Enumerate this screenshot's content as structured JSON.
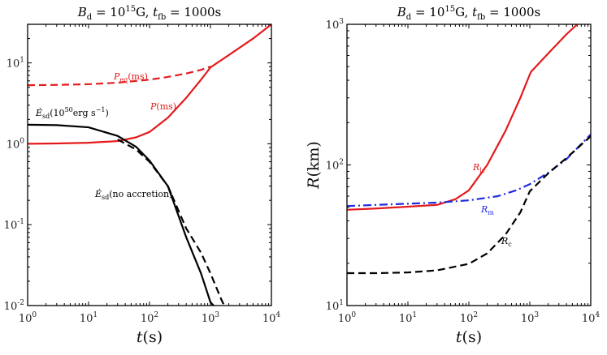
{
  "chart_data": [
    {
      "type": "line",
      "title": "B_d = 10^15 G, t_fb = 1000s",
      "title_parts": {
        "B": "B",
        "B_sub": "d",
        "eq": " = 10",
        "exp": "15",
        "unit": "G, ",
        "t": "t",
        "t_sub": "fb",
        "rest": " = 1000s"
      },
      "xlabel": "t(s)",
      "ylabel": "",
      "xscale": "log",
      "yscale": "log",
      "xlim": [
        1,
        10000
      ],
      "ylim": [
        0.01,
        30
      ],
      "grid": false,
      "x_ticks": [
        {
          "b": "10",
          "e": "0"
        },
        {
          "b": "10",
          "e": "1"
        },
        {
          "b": "10",
          "e": "2"
        },
        {
          "b": "10",
          "e": "3"
        },
        {
          "b": "10",
          "e": "4"
        }
      ],
      "y_ticks": [
        {
          "b": "10",
          "e": "-2"
        },
        {
          "b": "10",
          "e": "-1"
        },
        {
          "b": "10",
          "e": "0"
        },
        {
          "b": "10",
          "e": "1"
        }
      ],
      "series": [
        {
          "name": "P_eq(ms)",
          "label_text": "P",
          "label_sub": "eq",
          "label_rest": "(ms)",
          "color": "#e41a1c",
          "dash": "dashed",
          "x": [
            1,
            3,
            10,
            30,
            100,
            200,
            400,
            700,
            1000
          ],
          "y": [
            5.3,
            5.35,
            5.45,
            5.7,
            6.2,
            6.7,
            7.4,
            8.2,
            9.0
          ]
        },
        {
          "name": "P(ms)",
          "label_text": "P",
          "label_sub": "",
          "label_rest": "(ms)",
          "color": "#e41a1c",
          "dash": "solid",
          "x": [
            1,
            3,
            10,
            30,
            60,
            100,
            200,
            400,
            700,
            1000,
            2000,
            5000,
            10000
          ],
          "y": [
            1.0,
            1.01,
            1.03,
            1.08,
            1.2,
            1.4,
            2.1,
            3.7,
            6.2,
            8.8,
            12.5,
            20.0,
            30.0
          ]
        },
        {
          "name": "Ė_sd(10^50 erg s^-1)",
          "label_text": "Ė",
          "label_sub": "sd",
          "label_rest": "(10",
          "label_exp": "50",
          "label_rest2": "erg s",
          "label_exp2": "−1",
          "label_end": ")",
          "color": "#000000",
          "dash": "solid",
          "x": [
            1,
            3,
            10,
            30,
            60,
            100,
            200,
            400,
            700,
            1000,
            1200
          ],
          "y": [
            1.72,
            1.7,
            1.6,
            1.25,
            0.92,
            0.62,
            0.3,
            0.07,
            0.025,
            0.011,
            0.0095
          ]
        },
        {
          "name": "Ė_sd(no accretion)",
          "label_text": "Ė",
          "label_sub": "sd",
          "label_rest": "(no accretion)",
          "color": "#000000",
          "dash": "dashed",
          "x": [
            30,
            60,
            100,
            200,
            400,
            700,
            1000,
            1500,
            1700
          ],
          "y": [
            1.13,
            0.85,
            0.6,
            0.3,
            0.09,
            0.045,
            0.025,
            0.012,
            0.0098
          ]
        }
      ]
    },
    {
      "type": "line",
      "title": "B_d = 10^15 G, t_fb = 1000s",
      "title_parts": {
        "B": "B",
        "B_sub": "d",
        "eq": " = 10",
        "exp": "15",
        "unit": "G, ",
        "t": "t",
        "t_sub": "fb",
        "rest": " = 1000s"
      },
      "xlabel": "t(s)",
      "ylabel": "R(km)",
      "xscale": "log",
      "yscale": "log",
      "xlim": [
        1,
        10000
      ],
      "ylim": [
        10,
        1000
      ],
      "grid": false,
      "x_ticks": [
        {
          "b": "10",
          "e": "0"
        },
        {
          "b": "10",
          "e": "1"
        },
        {
          "b": "10",
          "e": "2"
        },
        {
          "b": "10",
          "e": "3"
        },
        {
          "b": "10",
          "e": "4"
        }
      ],
      "y_ticks": [
        {
          "b": "10",
          "e": "1"
        },
        {
          "b": "10",
          "e": "2"
        },
        {
          "b": "10",
          "e": "3"
        }
      ],
      "series": [
        {
          "name": "R_lc",
          "label_text": "R",
          "label_sub": "lc",
          "color": "#e41a1c",
          "dash": "solid",
          "x": [
            1,
            3,
            10,
            30,
            60,
            100,
            200,
            400,
            700,
            1000,
            1050,
            2000,
            4000,
            6000
          ],
          "y": [
            48,
            49,
            50.5,
            52,
            57,
            66,
            100,
            175,
            300,
            440,
            460,
            620,
            850,
            1000
          ]
        },
        {
          "name": "R_m",
          "label_text": "R",
          "label_sub": "m",
          "color": "#1f2be0",
          "dash": "dashdot",
          "x": [
            1,
            3,
            10,
            30,
            100,
            300,
            600,
            1000,
            2000,
            4000,
            10000
          ],
          "y": [
            51,
            52,
            53,
            54,
            56,
            60,
            66,
            73,
            88,
            110,
            165
          ]
        },
        {
          "name": "R_c",
          "label_text": "R",
          "label_sub": "c",
          "color": "#000000",
          "dash": "dashed",
          "x": [
            1,
            3,
            10,
            30,
            100,
            200,
            400,
            700,
            1000,
            2000,
            4000,
            10000
          ],
          "y": [
            17,
            17,
            17.2,
            17.8,
            19.8,
            23.5,
            32,
            46,
            65,
            87,
            112,
            160
          ]
        }
      ]
    }
  ]
}
